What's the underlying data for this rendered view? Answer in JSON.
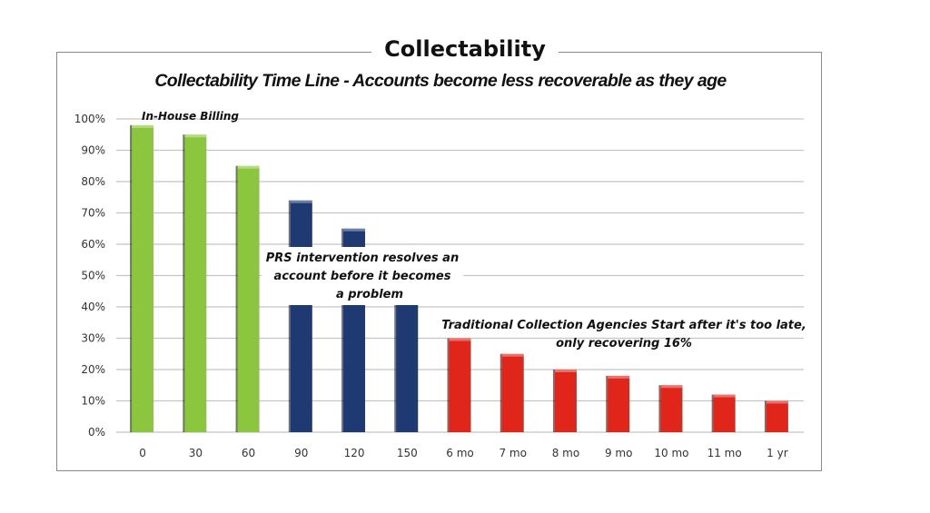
{
  "chart_data": {
    "type": "bar",
    "title": "Collectability",
    "subtitle": "Collectability Time Line - Accounts become less recoverable as they age",
    "categories": [
      "0",
      "30",
      "60",
      "90",
      "120",
      "150",
      "6 mo",
      "7 mo",
      "8 mo",
      "9 mo",
      "10 mo",
      "11 mo",
      "1 yr"
    ],
    "values": [
      98,
      95,
      85,
      74,
      65,
      45,
      30,
      25,
      20,
      18,
      15,
      12,
      10
    ],
    "ylim": [
      0,
      100
    ],
    "yticks": [
      "0%",
      "10%",
      "20%",
      "30%",
      "40%",
      "50%",
      "60%",
      "70%",
      "80%",
      "90%",
      "100%"
    ],
    "grid": true,
    "legend": "none",
    "bar_colors": [
      "#8cc63f",
      "#8cc63f",
      "#8cc63f",
      "#1f3a73",
      "#1f3a73",
      "#1f3a73",
      "#e0251b",
      "#e0251b",
      "#e0251b",
      "#e0251b",
      "#e0251b",
      "#e0251b",
      "#e0251b"
    ],
    "annotations": {
      "in_house": "In-House Billing",
      "prs": [
        "PRS intervention resolves an",
        "account before it becomes",
        "a problem"
      ],
      "traditional": [
        "Traditional Collection Agencies Start after it's too late,",
        "only recovering 16%"
      ]
    }
  }
}
